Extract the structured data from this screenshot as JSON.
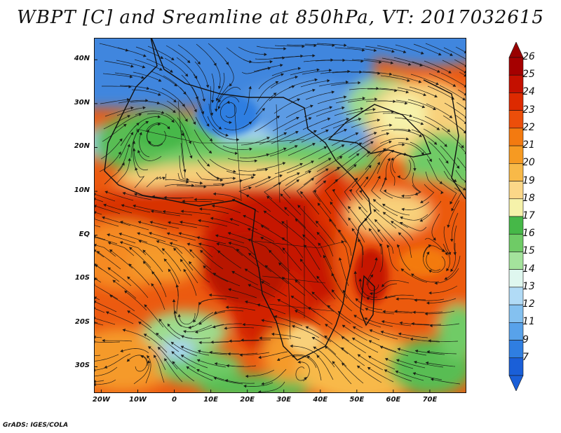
{
  "title": "WBPT [C] and Sreamline at 850hPa, VT: 2017032615",
  "footer": "GrADS: IGES/COLA",
  "map": {
    "lon_range": [
      -22,
      80
    ],
    "lat_range": [
      -36,
      45
    ],
    "lat_labels": [
      "40N",
      "30N",
      "20N",
      "10N",
      "EQ",
      "10S",
      "20S",
      "30S"
    ],
    "lat_values": [
      40,
      30,
      20,
      10,
      0,
      -10,
      -20,
      -30
    ],
    "lon_labels": [
      "20W",
      "10W",
      "0",
      "10E",
      "20E",
      "30E",
      "40E",
      "50E",
      "60E",
      "70E"
    ],
    "lon_values": [
      -20,
      -10,
      0,
      10,
      20,
      30,
      40,
      50,
      60,
      70
    ]
  },
  "colorbar": {
    "labels": [
      "26",
      "25",
      "24",
      "23",
      "22",
      "21",
      "20",
      "19",
      "18",
      "17",
      "16",
      "15",
      "14",
      "13",
      "12",
      "11",
      "9",
      "7"
    ],
    "colors": [
      "#a50000",
      "#c41000",
      "#dd2a00",
      "#ec4e0a",
      "#f37a10",
      "#f69a22",
      "#f8b948",
      "#fbd788",
      "#f6f2aa",
      "#46b848",
      "#6fcb66",
      "#a4e39c",
      "#dff7ef",
      "#b1dbf6",
      "#84c1f0",
      "#58a2ea",
      "#2f7ee1",
      "#1a5fd8"
    ],
    "top_arrow_color": "#990000",
    "bottom_arrow_color": "#1a5fd8"
  },
  "colors": {
    "hot": "#c61800",
    "warm": "#ec5a10",
    "orange": "#f59a2c",
    "yellow": "#f8d07a",
    "green": "#58bd52",
    "lightgreen": "#9edb8c",
    "lightblue": "#a8d4f2",
    "blue": "#3f86de"
  }
}
